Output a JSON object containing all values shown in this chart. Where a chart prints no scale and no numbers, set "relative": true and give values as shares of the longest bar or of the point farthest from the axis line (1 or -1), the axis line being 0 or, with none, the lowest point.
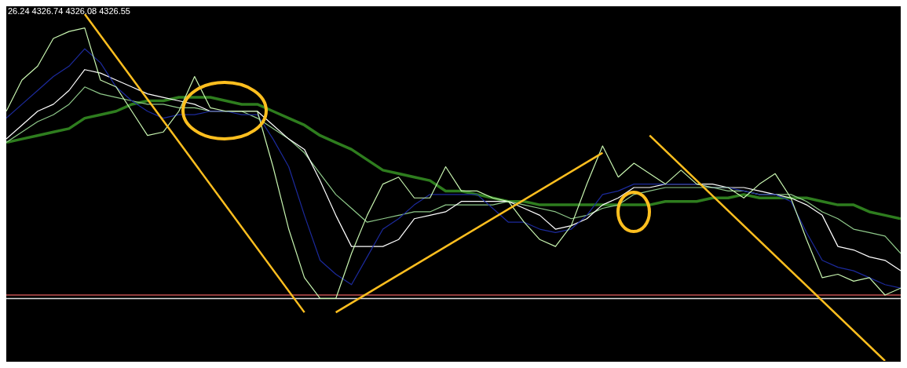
{
  "chart_data": {
    "type": "line",
    "relative": true,
    "annotations": [
      "26.24 4326.74 4326.08 4326.55"
    ],
    "categories": [
      null,
      null,
      null,
      null,
      null,
      null,
      null,
      null,
      null,
      null,
      null,
      null,
      null,
      null,
      null,
      null,
      null,
      null,
      null,
      null,
      null,
      null,
      null,
      null,
      null,
      null,
      null,
      null,
      null,
      null,
      null,
      null,
      null,
      null,
      null,
      null,
      null,
      null,
      null,
      null,
      null,
      null,
      null,
      null,
      null,
      null,
      null,
      null,
      null,
      null,
      null,
      null,
      null,
      null,
      null,
      null,
      null,
      null
    ],
    "series": [
      {
        "color": "#2e7d1e",
        "values": [
          0.63,
          0.64,
          0.65,
          0.66,
          0.67,
          0.7,
          0.71,
          0.72,
          0.74,
          0.75,
          0.75,
          0.76,
          0.76,
          0.76,
          0.75,
          0.74,
          0.74,
          0.72,
          0.7,
          0.68,
          0.65,
          0.63,
          0.61,
          0.58,
          0.55,
          0.54,
          0.53,
          0.52,
          0.49,
          0.49,
          0.48,
          0.47,
          0.46,
          0.46,
          0.45,
          0.45,
          0.45,
          0.45,
          0.45,
          0.45,
          0.45,
          0.45,
          0.46,
          0.46,
          0.46,
          0.47,
          0.47,
          0.48,
          0.47,
          0.47,
          0.47,
          0.47,
          0.46,
          0.45,
          0.45,
          0.43,
          0.42,
          0.41
        ]
      },
      {
        "color": "#8fc98a",
        "values": [
          0.63,
          0.66,
          0.69,
          0.71,
          0.74,
          0.79,
          0.77,
          0.76,
          0.75,
          0.74,
          0.74,
          0.73,
          0.73,
          0.72,
          0.72,
          0.72,
          0.7,
          0.67,
          0.64,
          0.6,
          0.54,
          0.48,
          0.44,
          0.4,
          0.41,
          0.42,
          0.43,
          0.43,
          0.45,
          0.45,
          0.45,
          0.45,
          0.46,
          0.45,
          0.44,
          0.43,
          0.41,
          0.42,
          0.44,
          0.45,
          0.48,
          0.49,
          0.5,
          0.5,
          0.5,
          0.5,
          0.49,
          0.49,
          0.48,
          0.48,
          0.48,
          0.46,
          0.43,
          0.41,
          0.38,
          0.37,
          0.36,
          0.31
        ]
      },
      {
        "color": "#ffffff",
        "values": [
          0.64,
          0.68,
          0.72,
          0.74,
          0.78,
          0.84,
          0.83,
          0.81,
          0.79,
          0.77,
          0.76,
          0.75,
          0.74,
          0.72,
          0.72,
          0.72,
          0.72,
          0.68,
          0.64,
          0.61,
          0.52,
          0.42,
          0.33,
          0.33,
          0.33,
          0.35,
          0.41,
          0.42,
          0.43,
          0.46,
          0.46,
          0.46,
          0.46,
          0.44,
          0.42,
          0.38,
          0.39,
          0.41,
          0.45,
          0.47,
          0.5,
          0.5,
          0.51,
          0.51,
          0.51,
          0.51,
          0.5,
          0.5,
          0.49,
          0.48,
          0.47,
          0.45,
          0.42,
          0.33,
          0.32,
          0.3,
          0.29,
          0.26
        ]
      },
      {
        "color": "#1c2a9c",
        "values": [
          0.7,
          0.74,
          0.78,
          0.82,
          0.85,
          0.9,
          0.86,
          0.79,
          0.75,
          0.72,
          0.7,
          0.71,
          0.71,
          0.72,
          0.72,
          0.71,
          0.71,
          0.64,
          0.56,
          0.42,
          0.29,
          0.25,
          0.22,
          0.3,
          0.38,
          0.41,
          0.45,
          0.48,
          0.48,
          0.48,
          0.48,
          0.44,
          0.4,
          0.4,
          0.38,
          0.37,
          0.38,
          0.42,
          0.48,
          0.49,
          0.51,
          0.51,
          0.51,
          0.51,
          0.51,
          0.5,
          0.5,
          0.49,
          0.48,
          0.48,
          0.46,
          0.37,
          0.29,
          0.27,
          0.26,
          0.24,
          0.22,
          0.21
        ]
      },
      {
        "color": "#c8f5b0",
        "values": [
          0.72,
          0.81,
          0.85,
          0.93,
          0.95,
          0.96,
          0.81,
          0.79,
          0.72,
          0.65,
          0.66,
          0.72,
          0.82,
          0.73,
          0.72,
          0.72,
          0.72,
          0.56,
          0.38,
          0.24,
          0.18,
          0.18,
          0.31,
          0.42,
          0.51,
          0.53,
          0.47,
          0.47,
          0.56,
          0.49,
          0.49,
          0.47,
          0.46,
          0.4,
          0.35,
          0.33,
          0.39,
          0.51,
          0.62,
          0.53,
          0.57,
          0.54,
          0.51,
          0.55,
          0.51,
          0.5,
          0.5,
          0.47,
          0.51,
          0.54,
          0.47,
          0.35,
          0.24,
          0.25,
          0.23,
          0.24,
          0.19,
          0.21
        ]
      },
      {
        "color": "#ffbf1f",
        "values": [
          null,
          null,
          null,
          null,
          null,
          1.0,
          null,
          null,
          null,
          null,
          null,
          null,
          null,
          null,
          null,
          null,
          null,
          null,
          null,
          0.14,
          null,
          null,
          null,
          null,
          null,
          null,
          null,
          null,
          null,
          null,
          null,
          null,
          null,
          null,
          null,
          null,
          null,
          null,
          null,
          null,
          null,
          null,
          null,
          null,
          null,
          null,
          null,
          null,
          null,
          null,
          null,
          null,
          null,
          null,
          null,
          null,
          null,
          null
        ]
      },
      {
        "color": "#ffbf1f",
        "values": [
          null,
          null,
          null,
          null,
          null,
          null,
          null,
          null,
          null,
          null,
          null,
          null,
          null,
          null,
          null,
          null,
          null,
          null,
          null,
          null,
          null,
          0.14,
          null,
          null,
          null,
          null,
          null,
          null,
          null,
          null,
          null,
          null,
          null,
          null,
          null,
          null,
          null,
          null,
          0.6,
          null,
          null,
          null,
          null,
          null,
          null,
          null,
          null,
          null,
          null,
          null,
          null,
          null,
          null,
          null,
          null,
          null,
          null,
          null
        ]
      },
      {
        "color": "#ffbf1f",
        "values": [
          null,
          null,
          null,
          null,
          null,
          null,
          null,
          null,
          null,
          null,
          null,
          null,
          null,
          null,
          null,
          null,
          null,
          null,
          null,
          null,
          null,
          null,
          null,
          null,
          null,
          null,
          null,
          null,
          null,
          null,
          null,
          null,
          null,
          null,
          null,
          null,
          null,
          null,
          null,
          null,
          null,
          0.65,
          null,
          null,
          null,
          null,
          null,
          null,
          null,
          null,
          null,
          null,
          null,
          null,
          null,
          null,
          0,
          null
        ]
      }
    ],
    "ref_lines": [
      {
        "axis": "y",
        "value": 0.19,
        "color": "#c05050"
      },
      {
        "axis": "y",
        "value": 0.18,
        "color": "#e0e0e0"
      }
    ]
  }
}
